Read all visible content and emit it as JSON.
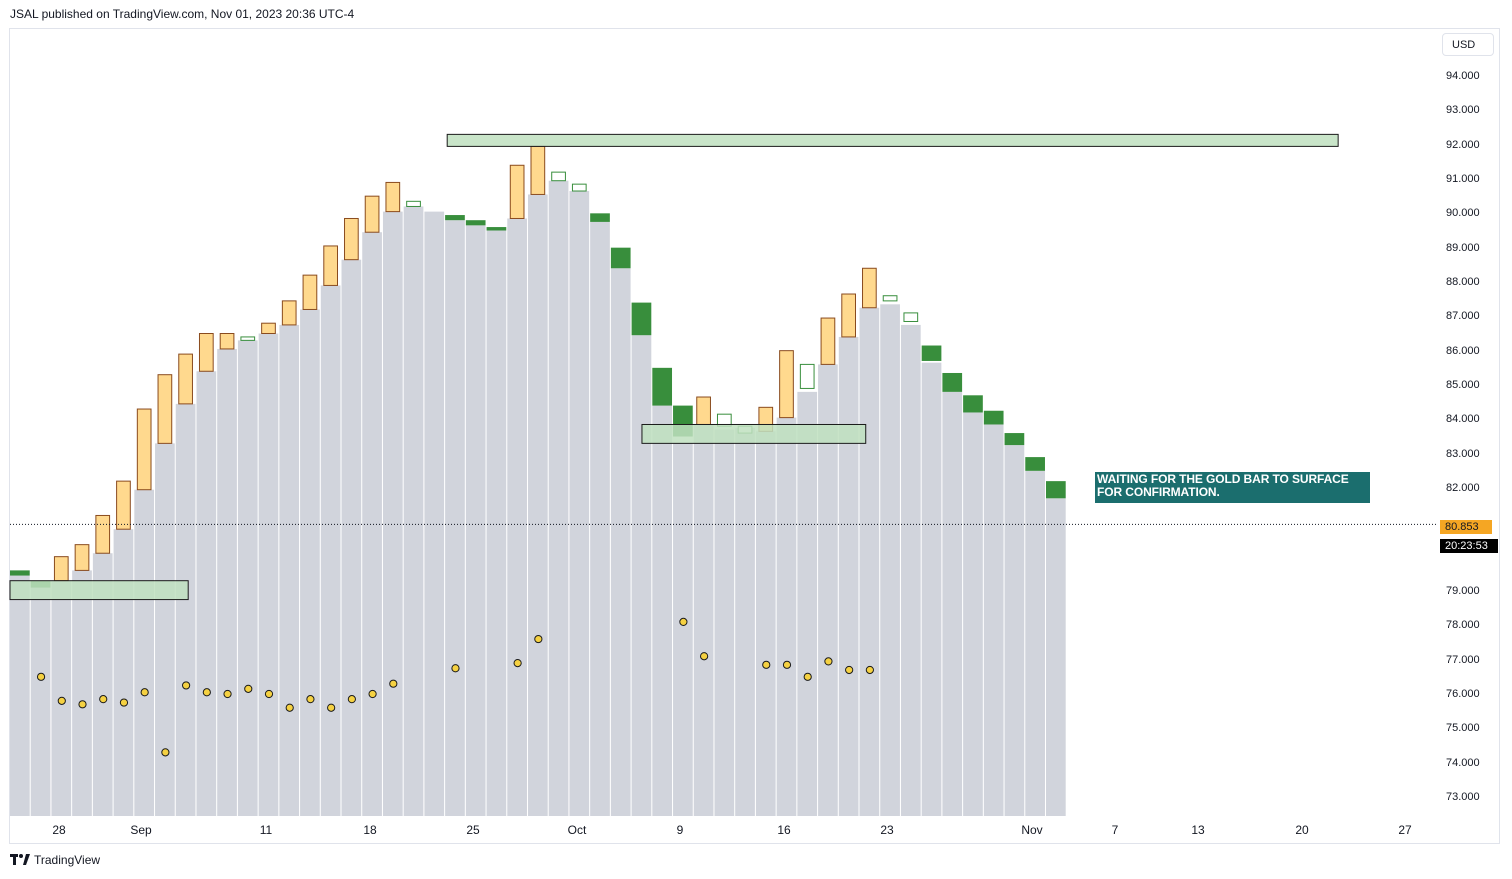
{
  "header": {
    "text": "JSAL published on TradingView.com, Nov 01, 2023 20:36 UTC-4"
  },
  "currency": "USD",
  "footer": {
    "brand": "TradingView",
    "logo_icon": "tradingview-logo-icon"
  },
  "colors": {
    "bar_body": "#d1d4dc",
    "gold": "#ffd98e",
    "gold_border": "#8a4b1e",
    "green": "#388e3c",
    "zone_fill": "#bfe0bf",
    "annotation_bg": "#1b6e6e",
    "dot_fill": "#f5d142",
    "wick_blue": "#6f8fe0",
    "wick_green": "#3a8f6a"
  },
  "annotation": {
    "line1": "WAITING FOR THE GOLD BAR TO SURFACE",
    "line2": "FOR CONFIRMATION."
  },
  "last_price": {
    "value": "80.853",
    "countdown": "20:23:53"
  },
  "chart_data": {
    "type": "bar",
    "y_axis": {
      "ticks": [
        "94.000",
        "93.000",
        "92.000",
        "91.000",
        "90.000",
        "89.000",
        "88.000",
        "87.000",
        "86.000",
        "85.000",
        "84.000",
        "83.000",
        "82.000",
        "80.853",
        "79.000",
        "78.000",
        "77.000",
        "76.000",
        "75.000",
        "74.000",
        "73.000"
      ],
      "ylim": [
        72.6,
        95.4
      ]
    },
    "x_axis": {
      "ticks": [
        "28",
        "Sep",
        "11",
        "18",
        "25",
        "Oct",
        "9",
        "16",
        "23",
        "Nov",
        "7",
        "13",
        "20",
        "27"
      ]
    },
    "bars": [
      {
        "top": 79.6,
        "cap": "green",
        "capTop": 79.6,
        "capBot": 79.45,
        "dot": null
      },
      {
        "top": 79.3,
        "cap": "green",
        "capTop": 79.3,
        "capBot": 79.1,
        "dot": 76.5
      },
      {
        "top": 79.3,
        "cap": "gold",
        "capTop": 80.0,
        "capBot": 79.3,
        "dot": 75.8
      },
      {
        "top": 79.6,
        "cap": "gold",
        "capTop": 80.35,
        "capBot": 79.6,
        "dot": 75.7
      },
      {
        "top": 80.1,
        "cap": "gold",
        "capTop": 81.2,
        "capBot": 80.1,
        "dot": 75.85
      },
      {
        "top": 80.8,
        "cap": "gold",
        "capTop": 82.2,
        "capBot": 80.8,
        "dot": 75.75
      },
      {
        "top": 81.95,
        "cap": "gold",
        "capTop": 84.3,
        "capBot": 81.95,
        "dot": 76.05
      },
      {
        "top": 83.3,
        "cap": "gold",
        "capTop": 85.3,
        "capBot": 83.3,
        "dot": 74.3
      },
      {
        "top": 84.45,
        "cap": "gold",
        "capTop": 85.9,
        "capBot": 84.45,
        "dot": 76.25
      },
      {
        "top": 85.4,
        "cap": "gold",
        "capTop": 86.5,
        "capBot": 85.4,
        "dot": 76.05
      },
      {
        "top": 86.05,
        "cap": "gold",
        "capTop": 86.5,
        "capBot": 86.05,
        "dot": 76.0
      },
      {
        "top": 86.3,
        "cap": "hollow",
        "capTop": 86.4,
        "capBot": 86.3,
        "dot": 76.15
      },
      {
        "top": 86.5,
        "cap": "gold",
        "capTop": 86.8,
        "capBot": 86.5,
        "dot": 76.0
      },
      {
        "top": 86.75,
        "cap": "gold",
        "capTop": 87.45,
        "capBot": 86.75,
        "dot": 75.6
      },
      {
        "top": 87.2,
        "cap": "gold",
        "capTop": 88.2,
        "capBot": 87.2,
        "dot": 75.85
      },
      {
        "top": 87.9,
        "cap": "gold",
        "capTop": 89.05,
        "capBot": 87.9,
        "dot": 75.6
      },
      {
        "top": 88.65,
        "cap": "gold",
        "capTop": 89.85,
        "capBot": 88.65,
        "dot": 75.85
      },
      {
        "top": 89.45,
        "cap": "gold",
        "capTop": 90.5,
        "capBot": 89.45,
        "dot": 76.0
      },
      {
        "top": 90.05,
        "cap": "gold",
        "capTop": 90.9,
        "capBot": 90.05,
        "dot": 76.3
      },
      {
        "top": 90.2,
        "cap": "hollow",
        "capTop": 90.35,
        "capBot": 90.2,
        "dot": null
      },
      {
        "top": 90.05,
        "cap": "none",
        "capTop": null,
        "capBot": null,
        "dot": null
      },
      {
        "top": 89.8,
        "cap": "green",
        "capTop": 89.95,
        "capBot": 89.8,
        "dot": 76.75
      },
      {
        "top": 89.65,
        "cap": "green",
        "capTop": 89.8,
        "capBot": 89.65,
        "dot": null
      },
      {
        "top": 89.5,
        "cap": "green",
        "capTop": 89.6,
        "capBot": 89.5,
        "dot": null
      },
      {
        "top": 89.85,
        "cap": "gold",
        "capTop": 91.4,
        "capBot": 89.85,
        "dot": 76.9
      },
      {
        "top": 90.55,
        "cap": "gold",
        "capTop": 91.95,
        "capBot": 90.55,
        "dot": 77.6
      },
      {
        "top": 90.95,
        "cap": "hollow",
        "capTop": 91.2,
        "capBot": 90.95,
        "dot": null
      },
      {
        "top": 90.65,
        "cap": "hollow",
        "capTop": 90.85,
        "capBot": 90.65,
        "dot": null
      },
      {
        "top": 89.75,
        "cap": "green",
        "capTop": 90.0,
        "capBot": 89.75,
        "dot": null
      },
      {
        "top": 88.4,
        "cap": "green",
        "capTop": 89.0,
        "capBot": 88.4,
        "dot": null
      },
      {
        "top": 86.45,
        "cap": "green",
        "capTop": 87.4,
        "capBot": 86.45,
        "dot": null
      },
      {
        "top": 84.4,
        "cap": "green",
        "capTop": 85.5,
        "capBot": 84.4,
        "dot": null
      },
      {
        "top": 83.3,
        "cap": "green",
        "capTop": 84.4,
        "capBot": 83.5,
        "dot": 78.1
      },
      {
        "top": 83.85,
        "cap": "gold",
        "capTop": 84.65,
        "capBot": 83.85,
        "dot": 77.1
      },
      {
        "top": 83.7,
        "cap": "hollow",
        "capTop": 84.15,
        "capBot": 83.8,
        "dot": null
      },
      {
        "top": 83.75,
        "cap": "hollow",
        "capTop": 83.8,
        "capBot": 83.6,
        "dot": null
      },
      {
        "top": 83.65,
        "cap": "gold",
        "capTop": 84.35,
        "capBot": 83.65,
        "dot": 76.85
      },
      {
        "top": 84.05,
        "cap": "gold",
        "capTop": 86.0,
        "capBot": 84.05,
        "dot": 76.85
      },
      {
        "top": 84.8,
        "cap": "hollow",
        "capTop": 85.6,
        "capBot": 84.9,
        "dot": 76.5
      },
      {
        "top": 85.6,
        "cap": "gold",
        "capTop": 86.95,
        "capBot": 85.6,
        "dot": 76.95
      },
      {
        "top": 86.4,
        "cap": "gold",
        "capTop": 87.65,
        "capBot": 86.4,
        "dot": 76.7
      },
      {
        "top": 87.25,
        "cap": "gold",
        "capTop": 88.4,
        "capBot": 87.25,
        "dot": 76.7
      },
      {
        "top": 87.35,
        "cap": "hollow",
        "capTop": 87.6,
        "capBot": 87.45,
        "dot": null
      },
      {
        "top": 86.75,
        "cap": "hollow",
        "capTop": 87.1,
        "capBot": 86.85,
        "dot": null
      },
      {
        "top": 85.65,
        "cap": "green",
        "capTop": 86.15,
        "capBot": 85.7,
        "dot": null
      },
      {
        "top": 84.8,
        "cap": "green",
        "capTop": 85.35,
        "capBot": 84.8,
        "dot": null
      },
      {
        "top": 84.2,
        "cap": "green",
        "capTop": 84.7,
        "capBot": 84.2,
        "dot": null
      },
      {
        "top": 83.85,
        "cap": "green",
        "capTop": 84.25,
        "capBot": 83.85,
        "dot": null
      },
      {
        "top": 83.25,
        "cap": "green",
        "capTop": 83.6,
        "capBot": 83.25,
        "dot": null
      },
      {
        "top": 82.5,
        "cap": "green",
        "capTop": 82.9,
        "capBot": 82.5,
        "dot": null
      },
      {
        "top": 81.7,
        "cap": "green",
        "capTop": 82.2,
        "capBot": 81.7,
        "dot": null
      }
    ],
    "zones": [
      {
        "x0": 0,
        "x1": 8.6,
        "y0": 79.3,
        "y1": 78.75
      },
      {
        "x0": 21.1,
        "x1": 64.1,
        "y0": 92.3,
        "y1": 91.95
      },
      {
        "x0": 30.5,
        "x1": 41.3,
        "y0": 83.85,
        "y1": 83.3
      }
    ],
    "price_line": 80.853
  }
}
